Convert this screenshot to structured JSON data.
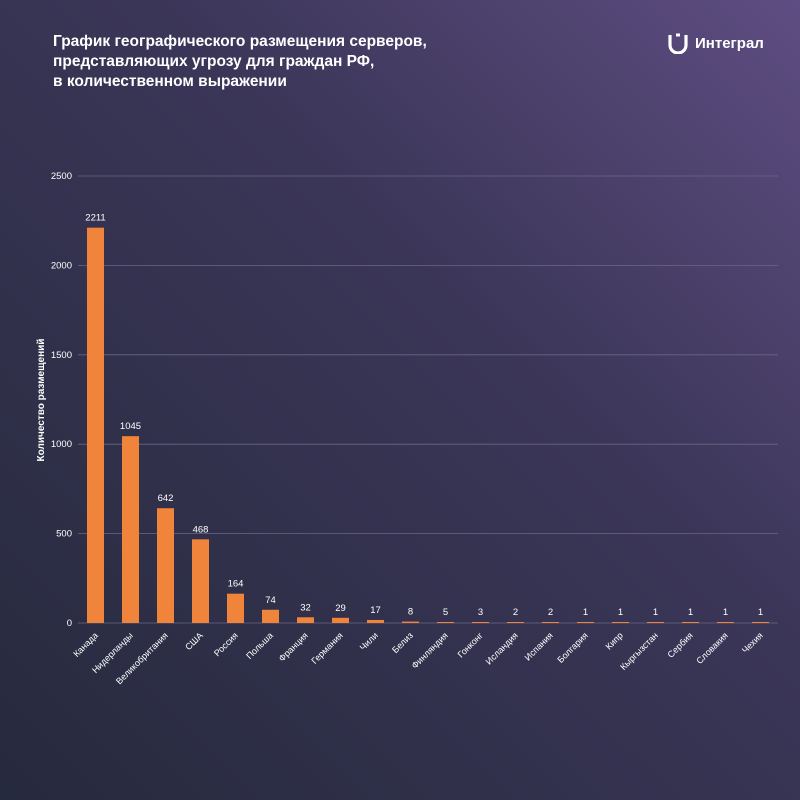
{
  "title_lines": [
    "График географического размещения серверов,",
    "представляющих угрозу для граждан РФ,",
    "в количественном выражении"
  ],
  "logo": {
    "text": "Интеграл",
    "icon": "integral-logo-icon"
  },
  "colors": {
    "bar": "#f0843a",
    "grid": "#6a6784",
    "text": "#ffffff"
  },
  "chart_data": {
    "type": "bar",
    "title": "График географического размещения серверов, представляющих угрозу для граждан РФ, в количественном выражении",
    "xlabel": "",
    "ylabel": "Количество размещений",
    "ylim": [
      0,
      2500
    ],
    "yticks": [
      0,
      500,
      1000,
      1500,
      2000,
      2500
    ],
    "grid": true,
    "categories": [
      "Канада",
      "Нидерланды",
      "Великобритания",
      "США",
      "Россия",
      "Польша",
      "Франция",
      "Германия",
      "Чили",
      "Белиз",
      "Финляндия",
      "Гонконг",
      "Исландия",
      "Испания",
      "Болгария",
      "Кипр",
      "Кыргызстан",
      "Сербия",
      "Словакия",
      "Чехия"
    ],
    "values": [
      2211,
      1045,
      642,
      468,
      164,
      74,
      32,
      29,
      17,
      8,
      5,
      3,
      2,
      2,
      1,
      1,
      1,
      1,
      1,
      1
    ]
  }
}
